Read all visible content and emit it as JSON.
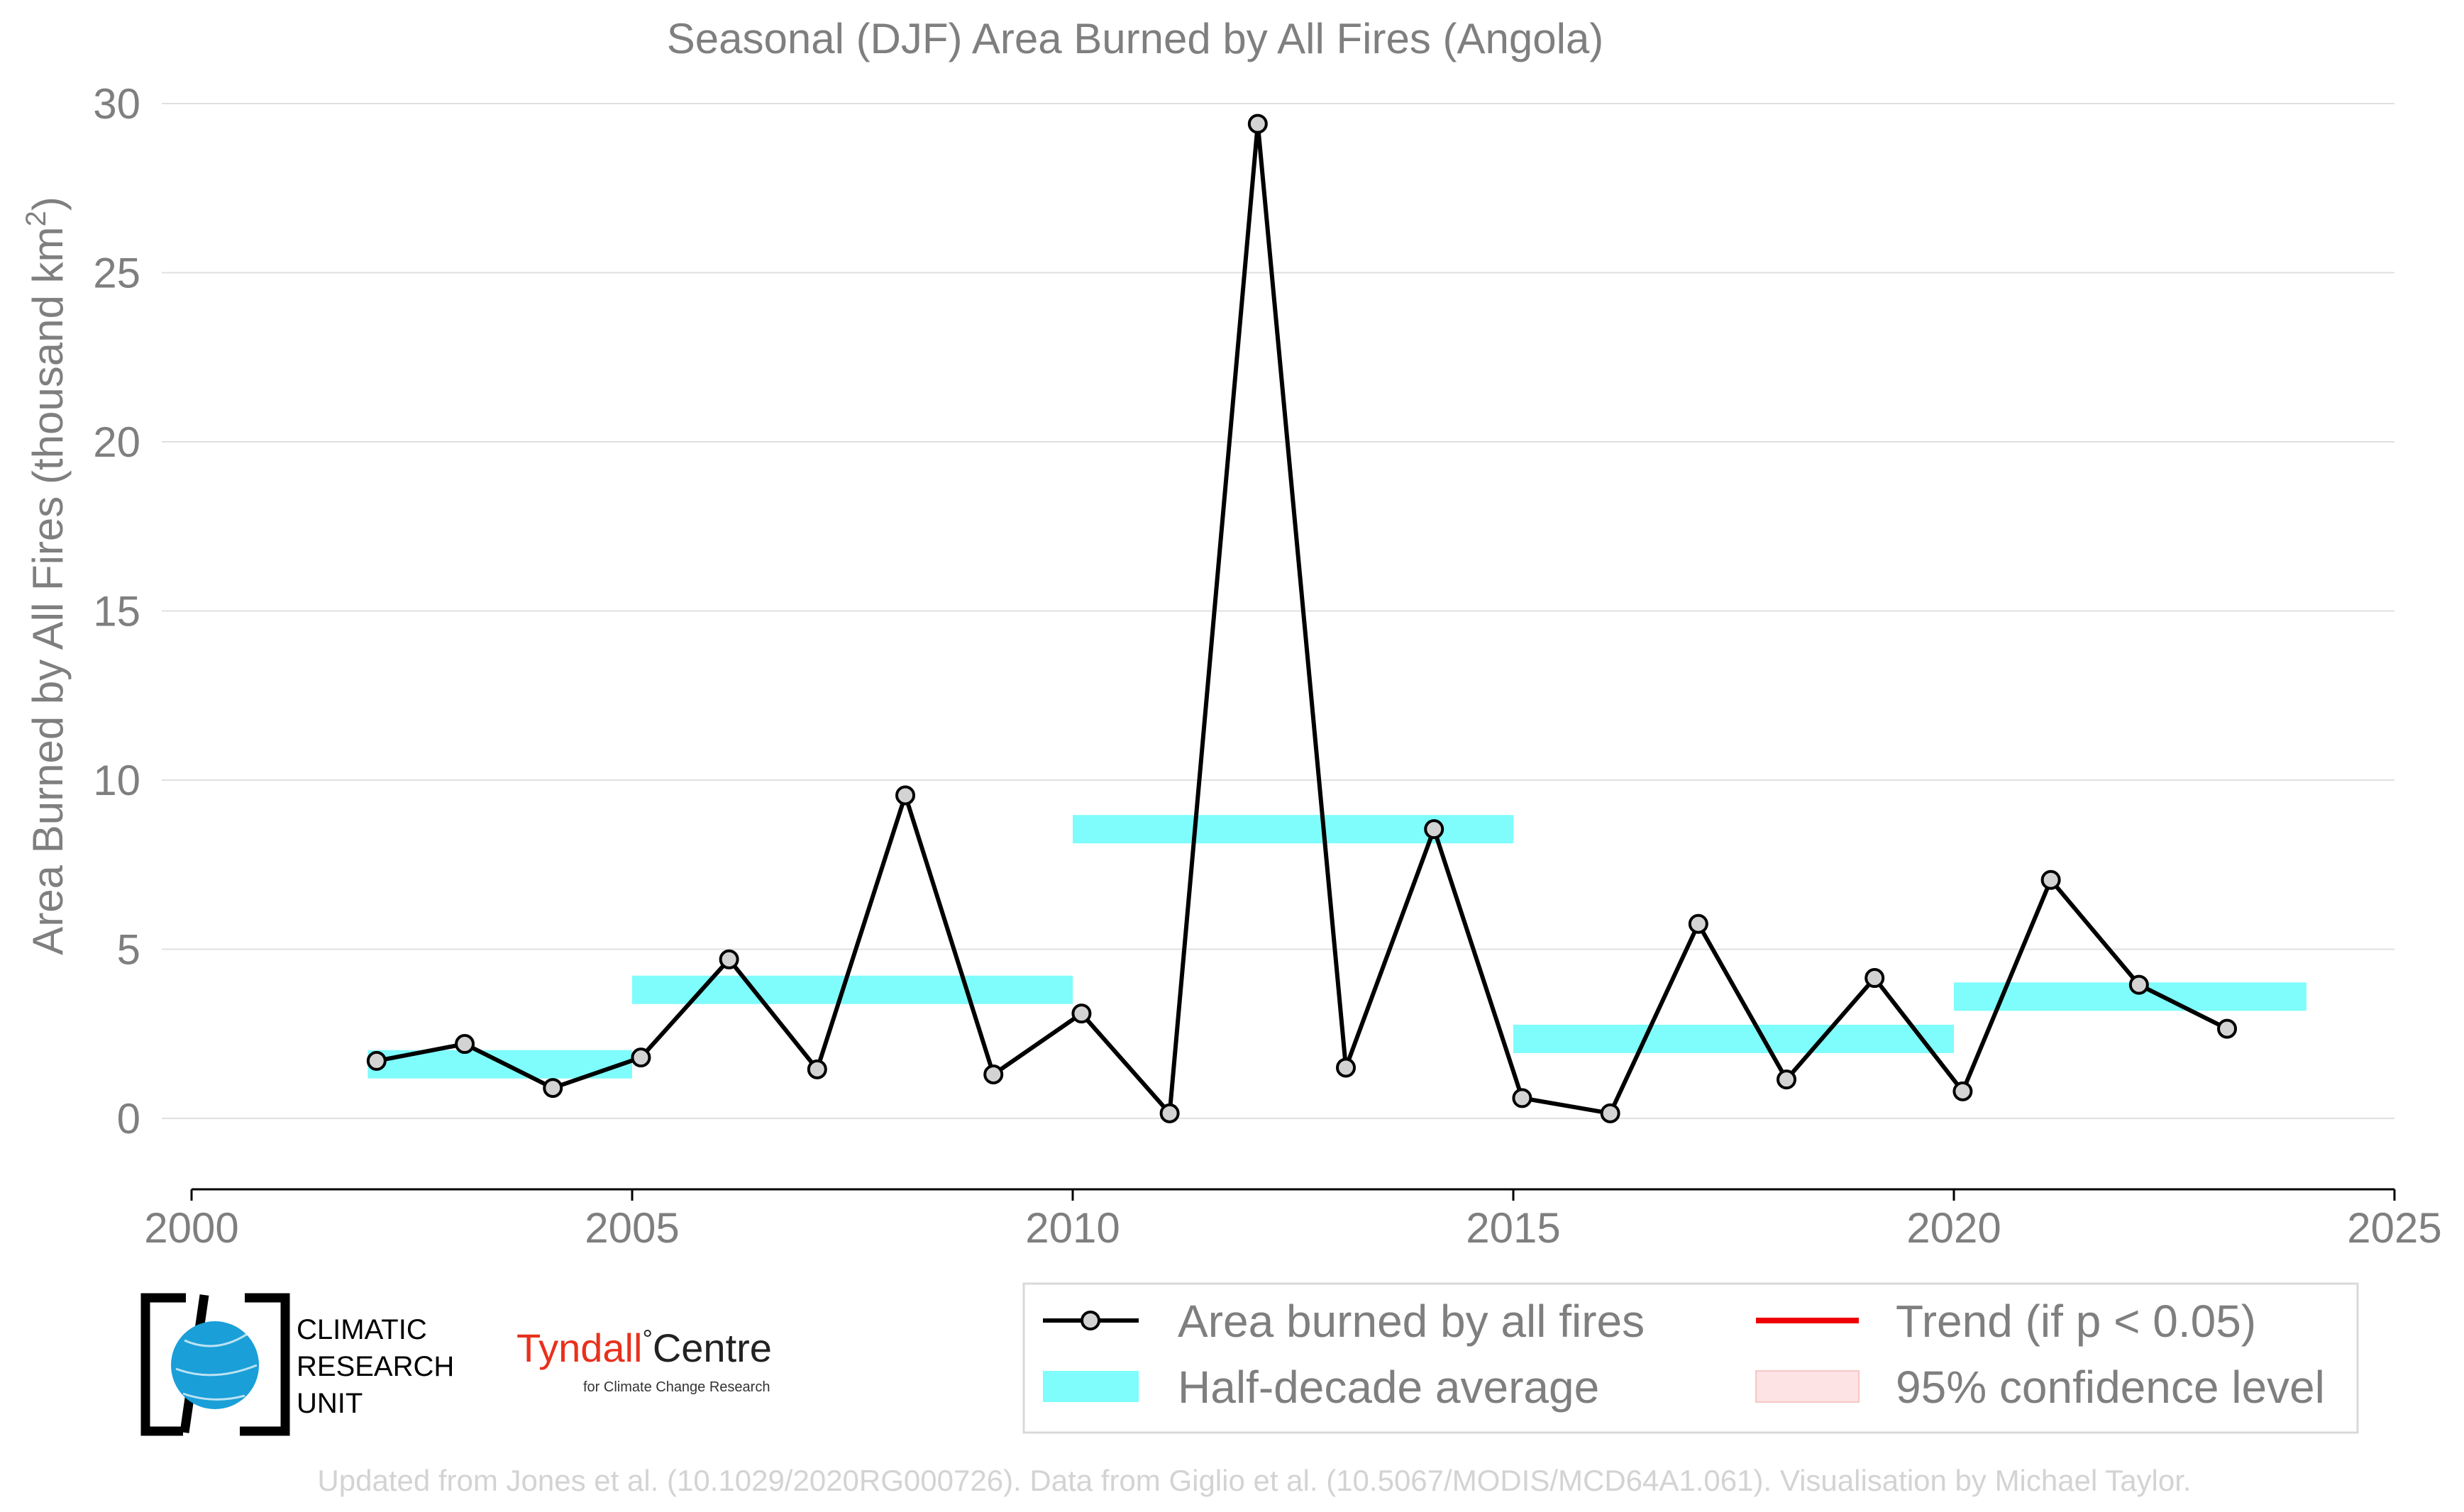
{
  "chart_data": {
    "type": "line",
    "title": "Seasonal (DJF) Area Burned by All Fires (Angola)",
    "ylabel": "Area Burned by All Fires (thousand km",
    "ylabel_sup": "2",
    "ylabel_end": ")",
    "xlabel": "",
    "xlim": [
      2000,
      2025
    ],
    "ylim": [
      -2.2,
      30
    ],
    "xticks": [
      2000,
      2005,
      2010,
      2015,
      2020,
      2025
    ],
    "yticks": [
      0,
      5,
      10,
      15,
      20,
      25,
      30
    ],
    "grid": "horizontal",
    "series": [
      {
        "name": "Area burned by all fires",
        "color": "#000000",
        "marker_fill": "#d3d3d3",
        "x": [
          2002.1,
          2003.1,
          2004.1,
          2005.1,
          2006.1,
          2007.1,
          2008.1,
          2009.1,
          2010.1,
          2011.1,
          2012.1,
          2013.1,
          2014.1,
          2015.1,
          2016.1,
          2017.1,
          2018.1,
          2019.1,
          2020.1,
          2021.1,
          2022.1,
          2023.1
        ],
        "y": [
          1.7,
          2.2,
          0.9,
          1.8,
          4.7,
          1.45,
          9.55,
          1.3,
          3.1,
          0.15,
          29.4,
          1.5,
          8.55,
          0.6,
          0.15,
          5.75,
          1.15,
          4.15,
          0.8,
          7.05,
          3.95,
          2.65
        ]
      }
    ],
    "half_decade_average": {
      "name": "Half-decade average",
      "color": "#7ffcfc",
      "segments": [
        {
          "x0": 2002,
          "x1": 2005,
          "y": 1.6
        },
        {
          "x0": 2005,
          "x1": 2010,
          "y": 3.8
        },
        {
          "x0": 2010,
          "x1": 2015,
          "y": 8.55
        },
        {
          "x0": 2015,
          "x1": 2020,
          "y": 2.35
        },
        {
          "x0": 2020,
          "x1": 2024,
          "y": 3.6
        }
      ]
    },
    "legend": {
      "placement": "bottom-right",
      "entries": [
        {
          "label": "Area burned by all fires",
          "kind": "line-marker",
          "color": "#000000"
        },
        {
          "label": "Trend (if p < 0.05)",
          "kind": "line",
          "color": "#ee0000"
        },
        {
          "label": "Half-decade average",
          "kind": "band",
          "color": "#7ffcfc"
        },
        {
          "label": "95% confidence level",
          "kind": "band",
          "color": "#fde3e3"
        }
      ]
    }
  },
  "logos": {
    "cru_line1": "CLIMATIC",
    "cru_line2": "RESEARCH",
    "cru_line3": "UNIT",
    "tyndall_main": "Tyndall",
    "tyndall_degree": "°",
    "tyndall_centre": "Centre",
    "tyndall_sub": "for Climate Change Research"
  },
  "footnote": "Updated from Jones et al. (10.1029/2020RG000726). Data from Giglio et al. (10.5067/MODIS/MCD64A1.061). Visualisation by Michael Taylor.",
  "colors": {
    "axis_text": "#7f7f7f",
    "grid": "#e0e0e0",
    "cru_blue": "#1a9fd8",
    "tyndall_red": "#e8311d"
  }
}
